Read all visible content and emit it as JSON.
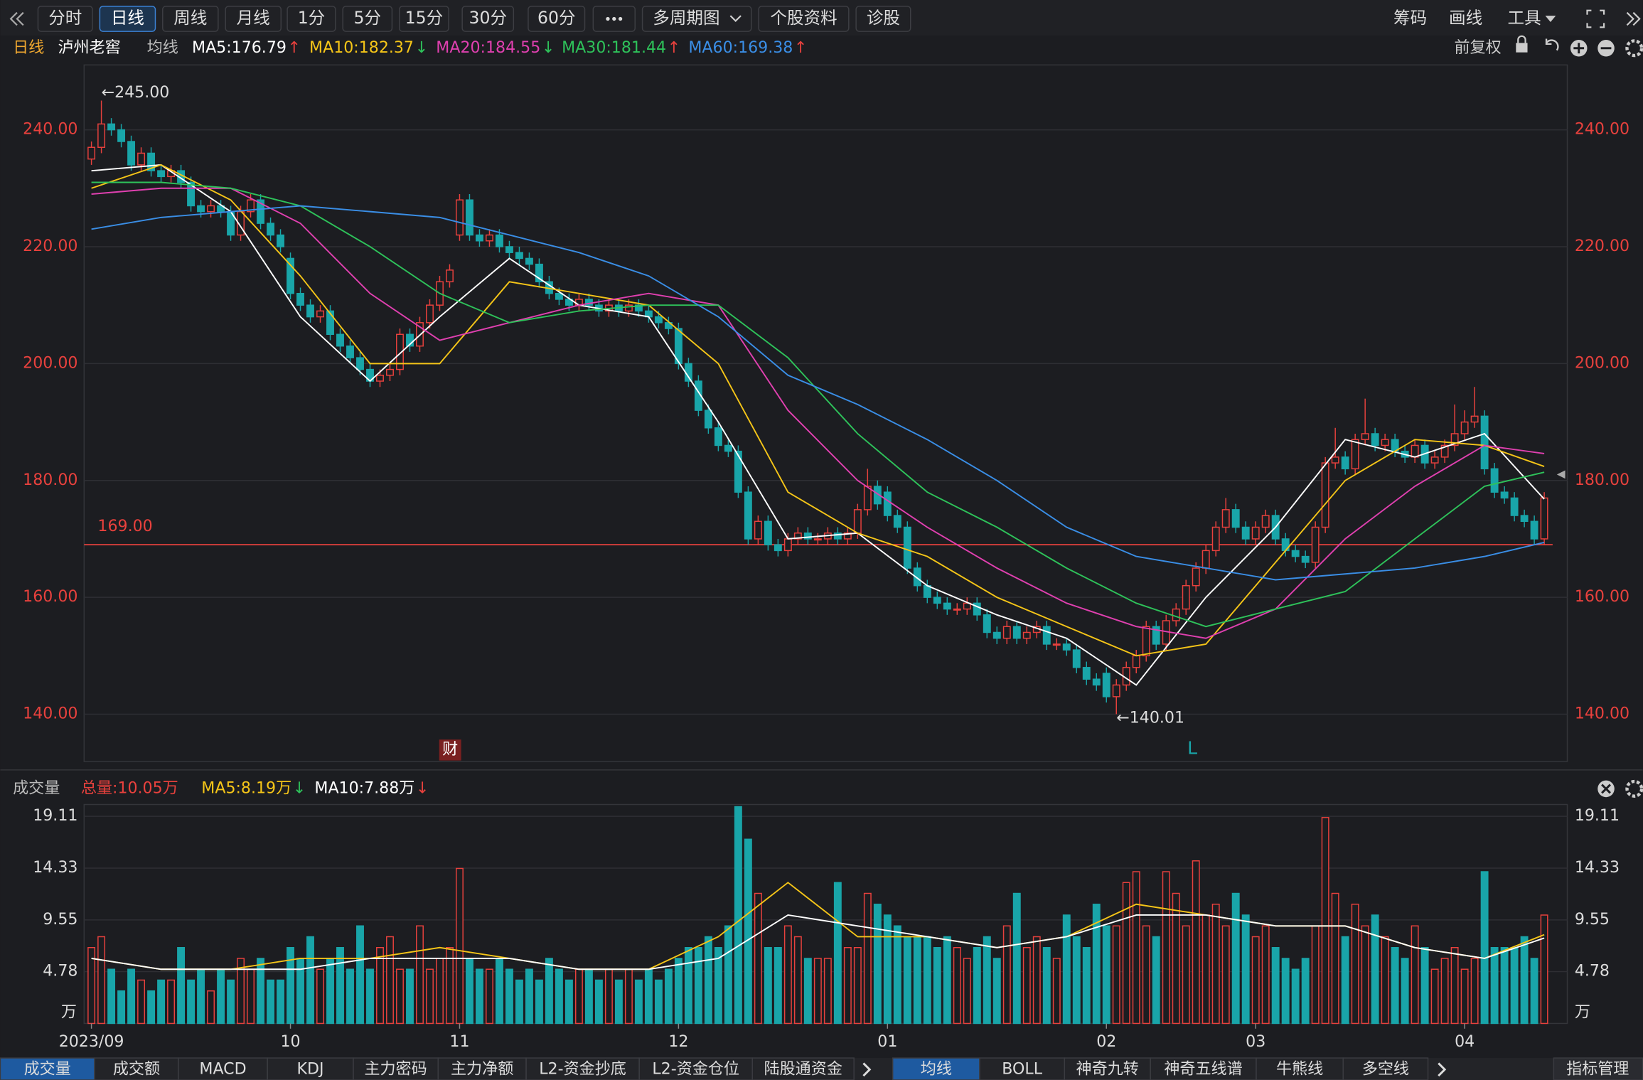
{
  "toolbar": {
    "left": [
      "分时",
      "日线",
      "周线",
      "月线",
      "1分",
      "5分",
      "15分",
      "30分",
      "60分",
      "多周期图",
      "个股资料",
      "诊股"
    ],
    "right": [
      "筹码",
      "画线",
      "工具"
    ]
  },
  "chart_data": {
    "type": "candlestick",
    "period": "日线",
    "title": "泸州老窖",
    "indicator": "均线",
    "adjust": "前复权",
    "categories": [
      "2023/09",
      null,
      null,
      null,
      null,
      null,
      null,
      null,
      null,
      null,
      null,
      null,
      null,
      null,
      null,
      null,
      null,
      null,
      null,
      null,
      "10",
      null,
      null,
      null,
      null,
      null,
      null,
      null,
      null,
      null,
      null,
      null,
      null,
      null,
      null,
      null,
      null,
      "11",
      null,
      null,
      null,
      null,
      null,
      null,
      null,
      null,
      null,
      null,
      null,
      null,
      null,
      null,
      null,
      null,
      null,
      null,
      null,
      null,
      null,
      "12",
      null,
      null,
      null,
      null,
      null,
      null,
      null,
      null,
      null,
      null,
      null,
      null,
      null,
      null,
      null,
      null,
      null,
      null,
      null,
      null,
      "01",
      null,
      null,
      null,
      null,
      null,
      null,
      null,
      null,
      null,
      null,
      null,
      null,
      null,
      null,
      null,
      null,
      null,
      null,
      null,
      null,
      null,
      "02",
      null,
      null,
      null,
      null,
      null,
      null,
      null,
      null,
      null,
      null,
      null,
      null,
      null,
      null,
      "03",
      null,
      null,
      null,
      null,
      null,
      null,
      null,
      null,
      null,
      null,
      null,
      null,
      null,
      null,
      null,
      null,
      null,
      null,
      null,
      null,
      "04",
      null,
      null,
      null,
      null,
      null,
      null,
      null,
      null
    ],
    "open": [
      235,
      237,
      241,
      240,
      238,
      234,
      236,
      233,
      232,
      233,
      231,
      227,
      226,
      227,
      226,
      222,
      226,
      228,
      224,
      222,
      218,
      212,
      210,
      208,
      209,
      205,
      203,
      201,
      199,
      197,
      198,
      199,
      205,
      203,
      207,
      210,
      214,
      222,
      228,
      222,
      221,
      222,
      220,
      219,
      218,
      217,
      214,
      212,
      211,
      210,
      211,
      210,
      209,
      210,
      209,
      210,
      209,
      208,
      207,
      206,
      200,
      197,
      192,
      189,
      186,
      185,
      178,
      170,
      173,
      169,
      168,
      170,
      171,
      170,
      170,
      171,
      170,
      171,
      175,
      179,
      178,
      174,
      172,
      165,
      162,
      160,
      159,
      158,
      158,
      159,
      157,
      154,
      153,
      155,
      153,
      154,
      155,
      152,
      152,
      151,
      148,
      146,
      147,
      143,
      145,
      148,
      150,
      155,
      152,
      156,
      158,
      162,
      165,
      168,
      172,
      175,
      172,
      170,
      172,
      174,
      170,
      168,
      167,
      166,
      172,
      183,
      184,
      182,
      187,
      188,
      186,
      187,
      185,
      184,
      186,
      183,
      184,
      186,
      188,
      190,
      191,
      182,
      178,
      177,
      174,
      173,
      170
    ],
    "high": [
      238,
      245,
      242,
      241,
      239,
      237,
      237,
      234,
      234,
      234,
      232,
      228,
      228,
      228,
      227,
      227,
      229,
      229,
      225,
      223,
      219,
      213,
      211,
      210,
      210,
      206,
      204,
      202,
      200,
      199,
      200,
      206,
      206,
      208,
      211,
      215,
      217,
      229,
      229,
      223,
      223,
      223,
      221,
      220,
      219,
      218,
      215,
      213,
      212,
      212,
      212,
      211,
      211,
      211,
      211,
      211,
      210,
      209,
      208,
      207,
      201,
      198,
      193,
      190,
      187,
      186,
      179,
      174,
      174,
      170,
      171,
      172,
      172,
      171,
      172,
      172,
      172,
      176,
      182,
      180,
      179,
      175,
      173,
      166,
      163,
      161,
      160,
      159,
      160,
      160,
      158,
      155,
      156,
      156,
      155,
      156,
      156,
      153,
      153,
      152,
      149,
      147,
      148,
      146,
      149,
      151,
      156,
      156,
      157,
      159,
      163,
      166,
      169,
      173,
      177,
      176,
      173,
      173,
      175,
      175,
      171,
      169,
      168,
      173,
      184,
      189,
      185,
      188,
      194,
      189,
      188,
      188,
      186,
      187,
      187,
      185,
      187,
      193,
      192,
      196,
      192,
      183,
      179,
      178,
      175,
      174,
      178
    ],
    "low": [
      234,
      236,
      239,
      237,
      233,
      233,
      232,
      231,
      231,
      230,
      226,
      225,
      225,
      225,
      221,
      221,
      225,
      223,
      221,
      219,
      211,
      209,
      207,
      207,
      204,
      202,
      200,
      198,
      196,
      196,
      197,
      198,
      202,
      202,
      206,
      209,
      213,
      221,
      221,
      220,
      220,
      219,
      218,
      217,
      216,
      213,
      211,
      210,
      209,
      209,
      209,
      208,
      208,
      208,
      208,
      208,
      207,
      206,
      205,
      199,
      196,
      191,
      188,
      185,
      184,
      177,
      169,
      169,
      168,
      167,
      167,
      169,
      169,
      169,
      169,
      169,
      169,
      170,
      174,
      175,
      173,
      171,
      164,
      161,
      159,
      158,
      157,
      157,
      157,
      156,
      153,
      152,
      152,
      152,
      152,
      153,
      151,
      151,
      150,
      147,
      145,
      144,
      142,
      140.01,
      144,
      147,
      149,
      151,
      151,
      155,
      157,
      161,
      164,
      167,
      171,
      171,
      169,
      169,
      171,
      169,
      167,
      166,
      165,
      165,
      171,
      182,
      181,
      181,
      186,
      185,
      185,
      184,
      183,
      183,
      182,
      182,
      183,
      185,
      187,
      189,
      181,
      177,
      176,
      173,
      172,
      169,
      169
    ],
    "close": [
      237,
      241,
      240,
      238,
      234,
      236,
      233,
      232,
      233,
      231,
      227,
      226,
      227,
      226,
      222,
      226,
      228,
      224,
      222,
      220,
      212,
      210,
      208,
      209,
      205,
      203,
      201,
      199,
      197,
      198,
      199,
      205,
      203,
      207,
      210,
      214,
      216,
      228,
      222,
      221,
      222,
      220,
      219,
      218,
      217,
      214,
      212,
      211,
      210,
      211,
      210,
      209,
      210,
      209,
      210,
      209,
      208,
      207,
      206,
      200,
      197,
      192,
      189,
      186,
      185,
      178,
      170,
      173,
      169,
      168,
      170,
      171,
      170,
      170,
      171,
      170,
      171,
      175,
      179,
      176,
      174,
      172,
      165,
      162,
      160,
      159,
      158,
      158,
      159,
      157,
      154,
      153,
      155,
      153,
      154,
      155,
      152,
      152,
      151,
      148,
      146,
      145,
      143,
      145,
      148,
      150,
      155,
      152,
      156,
      158,
      162,
      165,
      168,
      172,
      175,
      172,
      170,
      172,
      174,
      170,
      168,
      167,
      166,
      172,
      183,
      184,
      182,
      187,
      188,
      186,
      187,
      185,
      184,
      186,
      183,
      184,
      186,
      188,
      190,
      191,
      182,
      178,
      177,
      174,
      173,
      170,
      177
    ],
    "colors": {
      "up": "#e8413d",
      "down": "#19a5a9"
    },
    "ylim": [
      131.9,
      251.1
    ],
    "yticks": [
      {
        "value": 140,
        "label": "140.00"
      },
      {
        "value": 160,
        "label": "160.00"
      },
      {
        "value": 180,
        "label": "180.00"
      },
      {
        "value": 200,
        "label": "200.00"
      },
      {
        "value": 220,
        "label": "220.00"
      },
      {
        "value": 240,
        "label": "240.00"
      }
    ],
    "reference_line": {
      "value": 169,
      "label": "169.00",
      "color": "#e8413d"
    },
    "annotations": [
      "←245.00",
      "←140.01"
    ],
    "markers": [
      "财",
      "L"
    ],
    "ma": {
      "x": [
        0,
        7,
        14,
        21,
        28,
        35,
        42,
        49,
        56,
        63,
        70,
        77,
        84,
        91,
        98,
        105,
        112,
        119,
        126,
        133,
        140,
        146
      ],
      "series": [
        {
          "legend": "MA5:176.79",
          "arrow": "↑",
          "arrow_color": "#e8413d",
          "color": "#ffffff",
          "values": [
            233,
            234,
            226,
            208,
            197,
            208,
            218,
            210,
            208,
            190,
            170,
            171,
            162,
            157,
            153,
            145,
            160,
            172,
            187,
            184,
            188,
            176.8
          ]
        },
        {
          "legend": "MA10:182.37",
          "arrow": "↓",
          "arrow_color": "#2ec25a",
          "color": "#f5c518",
          "values": [
            230,
            234,
            228,
            215,
            200,
            200,
            214,
            212,
            210,
            200,
            178,
            171,
            167,
            160,
            155,
            150,
            152,
            166,
            180,
            187,
            186,
            182.4
          ]
        },
        {
          "legend": "MA20:184.55",
          "arrow": "↓",
          "arrow_color": "#2ec25a",
          "color": "#e040b0",
          "values": [
            229,
            230,
            230,
            224,
            212,
            204,
            207,
            210,
            212,
            210,
            192,
            180,
            172,
            165,
            159,
            155,
            153,
            158,
            170,
            179,
            186,
            184.6
          ]
        },
        {
          "legend": "MA30:181.44",
          "arrow": "↑",
          "arrow_color": "#e8413d",
          "color": "#2ec25a",
          "values": [
            231,
            231,
            230,
            227,
            220,
            212,
            207,
            209,
            210,
            210,
            201,
            188,
            178,
            172,
            165,
            159,
            155,
            158,
            161,
            170,
            179,
            181.4
          ]
        },
        {
          "legend": "MA60:169.38",
          "arrow": "↑",
          "arrow_color": "#e8413d",
          "color": "#3a8ee6",
          "values": [
            223,
            225,
            226,
            227,
            226,
            225,
            222,
            219,
            215,
            208,
            198,
            193,
            187,
            180,
            172,
            167,
            165,
            163,
            164,
            165,
            167,
            169.4
          ]
        }
      ]
    },
    "volume": {
      "title": "成交量",
      "total": "总量:10.05万",
      "unit": "万",
      "values": [
        7,
        8,
        5,
        3,
        5,
        4,
        3,
        4,
        4,
        7,
        4,
        5,
        3,
        5,
        4,
        6,
        5,
        6,
        4,
        4,
        7,
        6,
        8,
        5,
        6,
        7,
        5,
        9,
        5,
        7,
        8,
        5,
        5,
        9,
        5,
        6,
        7,
        14.3,
        6,
        5,
        5,
        6,
        5,
        4,
        5,
        4,
        6,
        5,
        4,
        5,
        5,
        4,
        5,
        4,
        5,
        4,
        5,
        4,
        5,
        6,
        7,
        7,
        8,
        7,
        9,
        20,
        17,
        12,
        7,
        7,
        9,
        8,
        6,
        6,
        6,
        13,
        7,
        7,
        12,
        11,
        10,
        9,
        8,
        8,
        8,
        7,
        8,
        7,
        6,
        7,
        8,
        6,
        9,
        12,
        7,
        8,
        7,
        6,
        10,
        8,
        7,
        11,
        9,
        9,
        13,
        14,
        9,
        8,
        14,
        12,
        9,
        15,
        10,
        11,
        9,
        12,
        10,
        8,
        9,
        7,
        6,
        5,
        6,
        9,
        19,
        12,
        8,
        11,
        9,
        10,
        8,
        7,
        6,
        9,
        7,
        5,
        6,
        7,
        5,
        6,
        14,
        7,
        7,
        7,
        8,
        6,
        10
      ],
      "ylim": [
        0,
        20.2
      ],
      "yticks": [
        4.78,
        9.55,
        14.33,
        19.11
      ],
      "ma": {
        "x": [
          0,
          7,
          14,
          21,
          28,
          35,
          42,
          49,
          56,
          63,
          70,
          77,
          84,
          91,
          98,
          105,
          112,
          119,
          126,
          133,
          140,
          146
        ],
        "series": [
          {
            "legend": "MA5:8.19万",
            "arrow": "↓",
            "arrow_color": "#2ec25a",
            "color": "#f5c518",
            "values": [
              6,
              5,
              5,
              6,
              6,
              7,
              6,
              5,
              5,
              8,
              13,
              8,
              8,
              7,
              8,
              11,
              10,
              9,
              9,
              7,
              6,
              8.19
            ]
          },
          {
            "legend": "MA10:7.88万",
            "arrow": "↓",
            "arrow_color": "#e8413d",
            "color": "#ffffff",
            "values": [
              6,
              5,
              5,
              5,
              6,
              6,
              6,
              5,
              5,
              6,
              10,
              9,
              8,
              7,
              8,
              10,
              10,
              9,
              9,
              7,
              6,
              7.88
            ]
          }
        ]
      }
    }
  },
  "tabs": {
    "left": [
      "成交量",
      "成交额",
      "MACD",
      "KDJ",
      "主力密码",
      "主力净额",
      "L2-资金抄底",
      "L2-资金仓位",
      "陆股通资金"
    ],
    "right": [
      "均线",
      "BOLL",
      "神奇九转",
      "神奇五线谱",
      "牛熊线",
      "多空线"
    ],
    "manage": "指标管理"
  }
}
